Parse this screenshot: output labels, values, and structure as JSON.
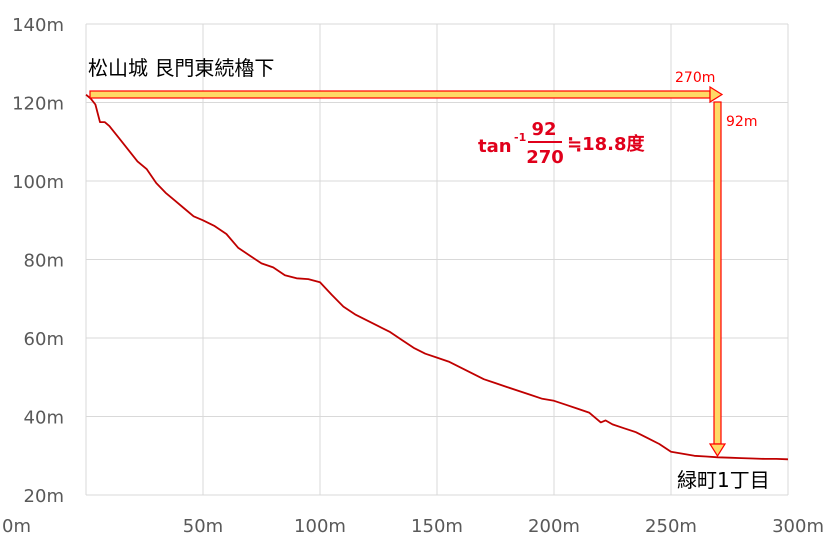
{
  "chart_data": {
    "type": "line",
    "title": "",
    "xlabel": "",
    "ylabel": "",
    "xlim": [
      0,
      300
    ],
    "ylim": [
      20,
      140
    ],
    "grid": true,
    "x_ticks": [
      "0m",
      "50m",
      "100m",
      "150m",
      "200m",
      "250m",
      "300m"
    ],
    "y_ticks": [
      "20m",
      "40m",
      "60m",
      "80m",
      "100m",
      "120m",
      "140m"
    ],
    "x_tick_values": [
      0,
      50,
      100,
      150,
      200,
      250,
      300
    ],
    "y_tick_values": [
      20,
      40,
      60,
      80,
      100,
      120,
      140
    ],
    "series": [
      {
        "color": "#c00000",
        "x": [
          0,
          2,
          4,
          6,
          8,
          10,
          14,
          18,
          22,
          26,
          30,
          34,
          38,
          42,
          46,
          50,
          55,
          60,
          65,
          70,
          75,
          80,
          85,
          90,
          95,
          100,
          105,
          110,
          115,
          120,
          125,
          130,
          135,
          140,
          145,
          150,
          155,
          160,
          165,
          170,
          175,
          180,
          185,
          190,
          195,
          200,
          205,
          210,
          215,
          220,
          222,
          225,
          230,
          235,
          240,
          245,
          250,
          255,
          260,
          265,
          270,
          275,
          280,
          285,
          290,
          295,
          300
        ],
        "y": [
          122,
          121,
          119.5,
          115,
          115,
          114,
          111,
          108,
          105,
          103,
          99.5,
          97,
          95,
          93,
          91,
          90,
          88.5,
          86.5,
          83,
          81,
          79,
          78,
          76,
          75.2,
          75,
          74.2,
          71,
          68,
          66,
          64.5,
          63,
          61.5,
          59.5,
          57.5,
          56,
          55,
          54,
          52.5,
          51,
          49.5,
          48.5,
          47.5,
          46.5,
          45.5,
          44.5,
          44,
          43,
          42,
          41,
          38.5,
          39,
          38,
          37,
          36,
          34.5,
          33,
          31,
          30.5,
          30,
          29.8,
          29.6,
          29.5,
          29.4,
          29.3,
          29.2,
          29.2,
          29.1
        ]
      }
    ],
    "annotations": {
      "start_label": "松山城 艮門東続櫓下",
      "end_label": "緑町1丁目",
      "horizontal_distance": "270m",
      "vertical_distance": "92m",
      "formula_tan": "tan",
      "formula_exp": "-1",
      "formula_numerator": "92",
      "formula_denominator": "270",
      "formula_result": "≒18.8度",
      "arrow_color": "#ffd966",
      "arrow_outline": "#ff0000"
    }
  }
}
